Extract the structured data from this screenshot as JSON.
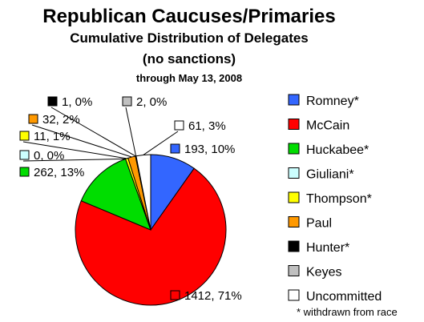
{
  "chart_data": {
    "type": "pie",
    "title": "Republican Caucuses/Primaries",
    "subtitle": "Cumulative Distribution of Delegates",
    "subtitle2": "(no sanctions)",
    "date_line": "through May 13, 2008",
    "footnote": "* withdrawn from race",
    "legend_position": "right",
    "slices": [
      {
        "name": "Romney*",
        "value": 193,
        "label": "193, 10%",
        "color": "#3366ff"
      },
      {
        "name": "McCain",
        "value": 1412,
        "label": "1412, 71%",
        "color": "#ff0000"
      },
      {
        "name": "Huckabee*",
        "value": 262,
        "label": "262, 13%",
        "color": "#00dd00"
      },
      {
        "name": "Giuliani*",
        "value": 0,
        "label": "0, 0%",
        "color": "#ccffff"
      },
      {
        "name": "Thompson*",
        "value": 11,
        "label": "11, 1%",
        "color": "#ffff00"
      },
      {
        "name": "Paul",
        "value": 32,
        "label": "32, 2%",
        "color": "#ff9900"
      },
      {
        "name": "Hunter*",
        "value": 1,
        "label": "1, 0%",
        "color": "#000000"
      },
      {
        "name": "Keyes",
        "value": 2,
        "label": "2, 0%",
        "color": "#c0c0c0"
      },
      {
        "name": "Uncommitted",
        "value": 61,
        "label": "61, 3%",
        "color": "#ffffff"
      }
    ]
  }
}
